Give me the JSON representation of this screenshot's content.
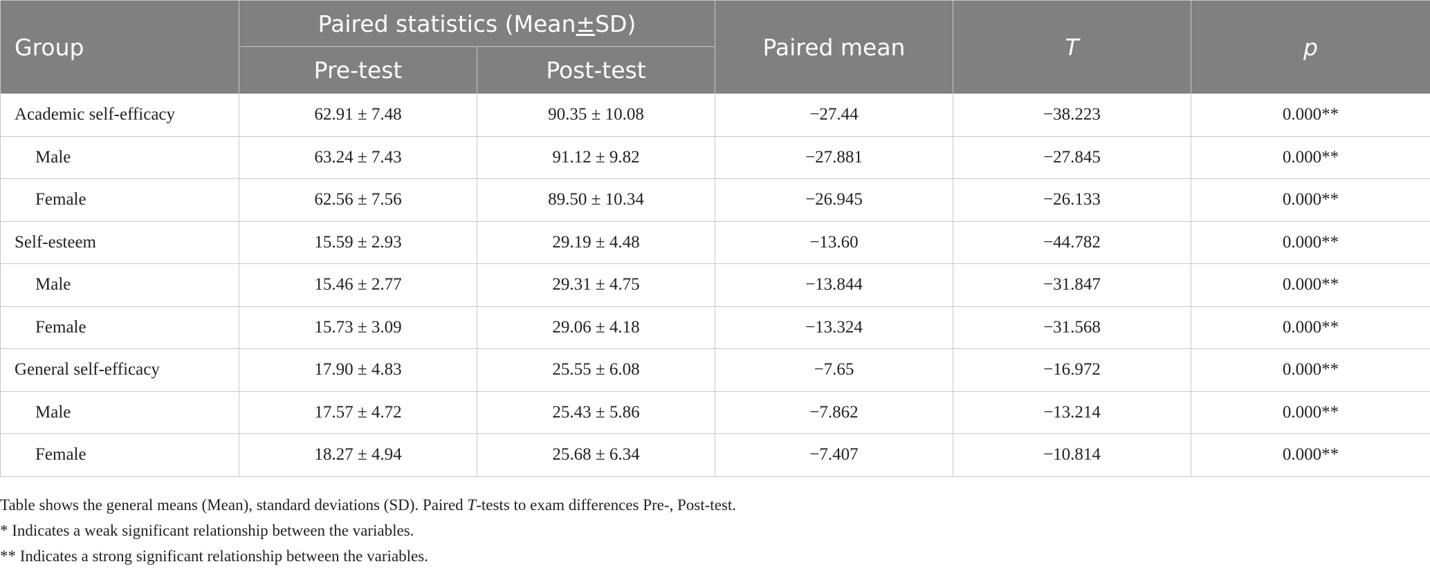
{
  "table": {
    "header": {
      "group": "Group",
      "paired_stats_prefix": "Paired statistics (Mean",
      "paired_stats_pm": "±",
      "paired_stats_suffix": "SD)",
      "pre_test": "Pre-test",
      "post_test": "Post-test",
      "paired_mean": "Paired mean",
      "t": "T",
      "p": "p"
    },
    "rows": [
      {
        "group": "Academic self-efficacy",
        "pre": "62.91 ± 7.48",
        "post": "90.35 ± 10.08",
        "paired_mean": "−27.44",
        "t": "−38.223",
        "p": "0.000**"
      },
      {
        "group": "Male",
        "pre": "63.24 ± 7.43",
        "post": "91.12 ± 9.82",
        "paired_mean": "−27.881",
        "t": "−27.845",
        "p": "0.000**"
      },
      {
        "group": "Female",
        "pre": "62.56 ± 7.56",
        "post": "89.50 ± 10.34",
        "paired_mean": "−26.945",
        "t": "−26.133",
        "p": "0.000**"
      },
      {
        "group": "Self-esteem",
        "pre": "15.59 ± 2.93",
        "post": "29.19 ± 4.48",
        "paired_mean": "−13.60",
        "t": "−44.782",
        "p": "0.000**"
      },
      {
        "group": "Male",
        "pre": "15.46 ± 2.77",
        "post": "29.31 ± 4.75",
        "paired_mean": "−13.844",
        "t": "−31.847",
        "p": "0.000**"
      },
      {
        "group": "Female",
        "pre": "15.73 ± 3.09",
        "post": "29.06 ± 4.18",
        "paired_mean": "−13.324",
        "t": "−31.568",
        "p": "0.000**"
      },
      {
        "group": "General self-efficacy",
        "pre": "17.90 ± 4.83",
        "post": "25.55 ± 6.08",
        "paired_mean": "−7.65",
        "t": "−16.972",
        "p": "0.000**"
      },
      {
        "group": "Male",
        "pre": "17.57 ± 4.72",
        "post": "25.43 ± 5.86",
        "paired_mean": "−7.862",
        "t": "−13.214",
        "p": "0.000**"
      },
      {
        "group": "Female",
        "pre": "18.27 ± 4.94",
        "post": "25.68 ± 6.34",
        "paired_mean": "−7.407",
        "t": "−10.814",
        "p": "0.000**"
      }
    ]
  },
  "notes": {
    "line1_a": "Table shows the general means (Mean), standard deviations (SD). Paired ",
    "line1_t": "T",
    "line1_b": "-tests to exam differences Pre-, Post-test.",
    "line2": "* Indicates a weak significant relationship between the variables.",
    "line3": "** Indicates a strong significant relationship between the variables."
  }
}
